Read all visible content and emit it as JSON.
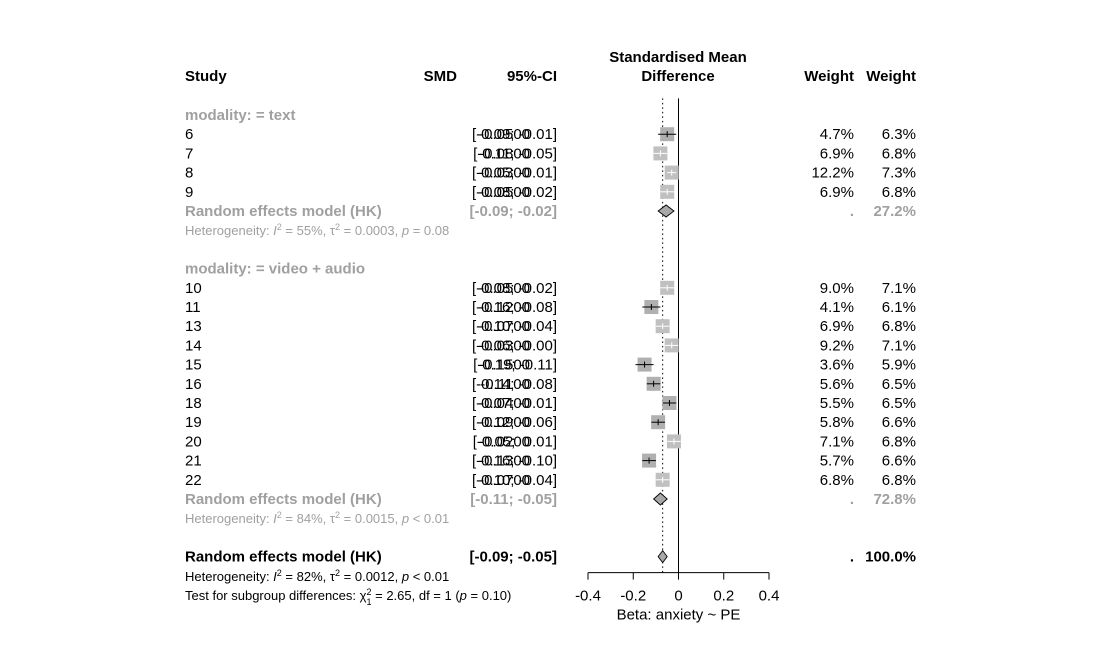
{
  "chart_data": {
    "type": "forest",
    "header": {
      "study": "Study",
      "smd": "SMD",
      "ci": "95%-CI",
      "plot_title_line1": "Standardised Mean",
      "plot_title_line2": "Difference",
      "weight1": "Weight",
      "weight2": "Weight"
    },
    "xlim": [
      -0.4,
      0.4
    ],
    "xticks": [
      "-0.4",
      "-0.2",
      "0",
      "0.2",
      "0.4"
    ],
    "xlabel": "Beta: anxiety ~ PE",
    "colors": {
      "box_gray": "#b0b0b0",
      "diamond": "#a8a8a8",
      "subgroup_text": "#a0a0a0",
      "text": "#000000"
    },
    "subgroups": [
      {
        "label": "modality: = text",
        "studies": [
          {
            "study": "6",
            "smd": "-0.0500",
            "ci": "[-0.09; -0.01]",
            "w1": "4.7%",
            "w2": "6.3%",
            "est": -0.05,
            "lo": -0.09,
            "hi": -0.01,
            "box": "dark"
          },
          {
            "study": "7",
            "smd": "-0.0800",
            "ci": "[-0.11; -0.05]",
            "w1": "6.9%",
            "w2": "6.8%",
            "est": -0.08,
            "lo": -0.11,
            "hi": -0.05,
            "box": "gray"
          },
          {
            "study": "8",
            "smd": "-0.0300",
            "ci": "[-0.05; -0.01]",
            "w1": "12.2%",
            "w2": "7.3%",
            "est": -0.03,
            "lo": -0.05,
            "hi": -0.01,
            "box": "gray"
          },
          {
            "study": "9",
            "smd": "-0.0500",
            "ci": "[-0.08; -0.02]",
            "w1": "6.9%",
            "w2": "6.8%",
            "est": -0.05,
            "lo": -0.08,
            "hi": -0.02,
            "box": "gray"
          }
        ],
        "model": {
          "label": "Random effects model (HK)",
          "ci": "[-0.09; -0.02]",
          "w1": ".",
          "w2": "27.2%",
          "est": -0.055,
          "lo": -0.09,
          "hi": -0.02
        },
        "heterogeneity": {
          "prefix": "Heterogeneity: ",
          "i2": " = 55%, ",
          "tau2": " = 0.0003, ",
          "p": " = 0.08"
        }
      },
      {
        "label": "modality: = video + audio",
        "studies": [
          {
            "study": "10",
            "smd": "-0.0500",
            "ci": "[-0.08; -0.02]",
            "w1": "9.0%",
            "w2": "7.1%",
            "est": -0.05,
            "lo": -0.08,
            "hi": -0.02,
            "box": "gray"
          },
          {
            "study": "11",
            "smd": "-0.1200",
            "ci": "[-0.16; -0.08]",
            "w1": "4.1%",
            "w2": "6.1%",
            "est": -0.12,
            "lo": -0.16,
            "hi": -0.08,
            "box": "dark"
          },
          {
            "study": "13",
            "smd": "-0.0700",
            "ci": "[-0.10; -0.04]",
            "w1": "6.9%",
            "w2": "6.8%",
            "est": -0.07,
            "lo": -0.1,
            "hi": -0.04,
            "box": "gray"
          },
          {
            "study": "14",
            "smd": "-0.0300",
            "ci": "[-0.06; -0.00]",
            "w1": "9.2%",
            "w2": "7.1%",
            "est": -0.03,
            "lo": -0.06,
            "hi": -0.0,
            "box": "gray"
          },
          {
            "study": "15",
            "smd": "-0.1500",
            "ci": "[-0.19; -0.11]",
            "w1": "3.6%",
            "w2": "5.9%",
            "est": -0.15,
            "lo": -0.19,
            "hi": -0.11,
            "box": "dark"
          },
          {
            "study": "16",
            "smd": "-0.1100",
            "ci": "[-0.14; -0.08]",
            "w1": "5.6%",
            "w2": "6.5%",
            "est": -0.11,
            "lo": -0.14,
            "hi": -0.08,
            "box": "dark"
          },
          {
            "study": "18",
            "smd": "-0.0400",
            "ci": "[-0.07; -0.01]",
            "w1": "5.5%",
            "w2": "6.5%",
            "est": -0.04,
            "lo": -0.07,
            "hi": -0.01,
            "box": "dark"
          },
          {
            "study": "19",
            "smd": "-0.0900",
            "ci": "[-0.12; -0.06]",
            "w1": "5.8%",
            "w2": "6.6%",
            "est": -0.09,
            "lo": -0.12,
            "hi": -0.06,
            "box": "dark"
          },
          {
            "study": "20",
            "smd": "-0.0200",
            "ci": "[-0.05;  0.01]",
            "w1": "7.1%",
            "w2": "6.8%",
            "est": -0.02,
            "lo": -0.05,
            "hi": 0.01,
            "box": "gray"
          },
          {
            "study": "21",
            "smd": "-0.1300",
            "ci": "[-0.16; -0.10]",
            "w1": "5.7%",
            "w2": "6.6%",
            "est": -0.13,
            "lo": -0.16,
            "hi": -0.1,
            "box": "dark"
          },
          {
            "study": "22",
            "smd": "-0.0700",
            "ci": "[-0.10; -0.04]",
            "w1": "6.8%",
            "w2": "6.8%",
            "est": -0.07,
            "lo": -0.1,
            "hi": -0.04,
            "box": "gray"
          }
        ],
        "model": {
          "label": "Random effects model (HK)",
          "ci": "[-0.11; -0.05]",
          "w1": ".",
          "w2": "72.8%",
          "est": -0.08,
          "lo": -0.11,
          "hi": -0.05
        },
        "heterogeneity": {
          "prefix": "Heterogeneity: ",
          "i2": " = 84%, ",
          "tau2": " = 0.0015, ",
          "p": " < 0.01"
        }
      }
    ],
    "overall": {
      "label": "Random effects model (HK)",
      "ci": "[-0.09; -0.05]",
      "w1": ".",
      "w2": "100.0%",
      "est": -0.07,
      "lo": -0.09,
      "hi": -0.05,
      "heterogeneity": {
        "prefix": "Heterogeneity: ",
        "i2": " = 82%, ",
        "tau2": " = 0.0012, ",
        "p": " < 0.01"
      },
      "subgroup_test": {
        "prefix": "Test for subgroup differences: ",
        "chi_sub": "1",
        "rest": " = 2.65, df = 1 (",
        "p": " = 0.10)"
      }
    }
  }
}
